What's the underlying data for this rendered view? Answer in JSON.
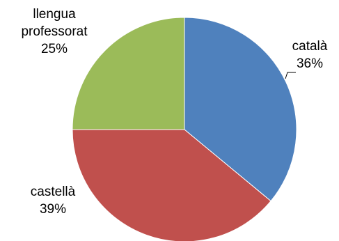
{
  "chart_data": {
    "type": "pie",
    "title": "",
    "legend": "none",
    "start_angle_deg": 0,
    "direction": "clockwise",
    "slices": [
      {
        "label": "català",
        "value": 36,
        "value_label": "36%",
        "color": "#4F81BD"
      },
      {
        "label": "castellà",
        "value": 39,
        "value_label": "39%",
        "color": "#C0504D"
      },
      {
        "label": "llengua professorat",
        "label_lines": [
          "llengua",
          "professorat"
        ],
        "value": 25,
        "value_label": "25%",
        "color": "#9BBB59"
      }
    ]
  }
}
